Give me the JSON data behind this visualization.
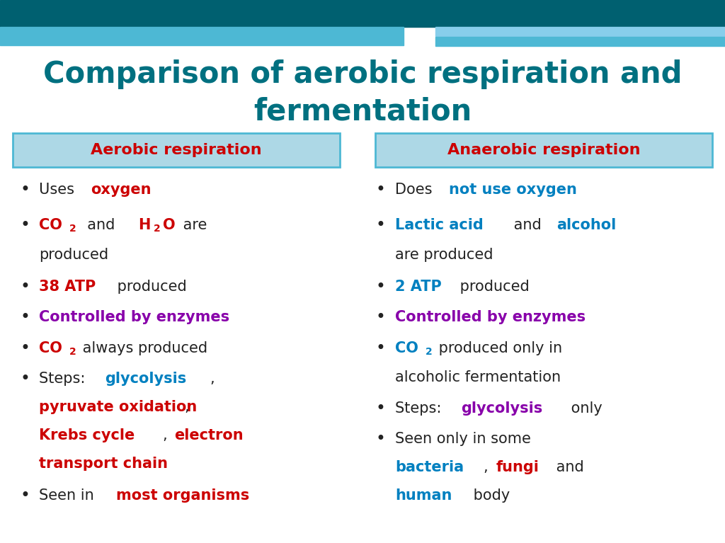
{
  "title_line1": "Comparison of aerobic respiration and",
  "title_line2": "fermentation",
  "title_color": "#007080",
  "background_color": "#ffffff",
  "header_bg_color": "#add8e6",
  "header_border_color": "#4db8d4",
  "left_header": "Aerobic respiration",
  "right_header": "Anaerobic respiration",
  "header_text_color": "#cc0000",
  "top_bar_dark": "#006070",
  "top_bar_light1": "#4db8d4",
  "top_bar_light2": "#87ceeb",
  "colors": {
    "red": "#cc0000",
    "blue": "#0080c0",
    "purple": "#8800aa",
    "black": "#222222",
    "teal": "#007080"
  }
}
